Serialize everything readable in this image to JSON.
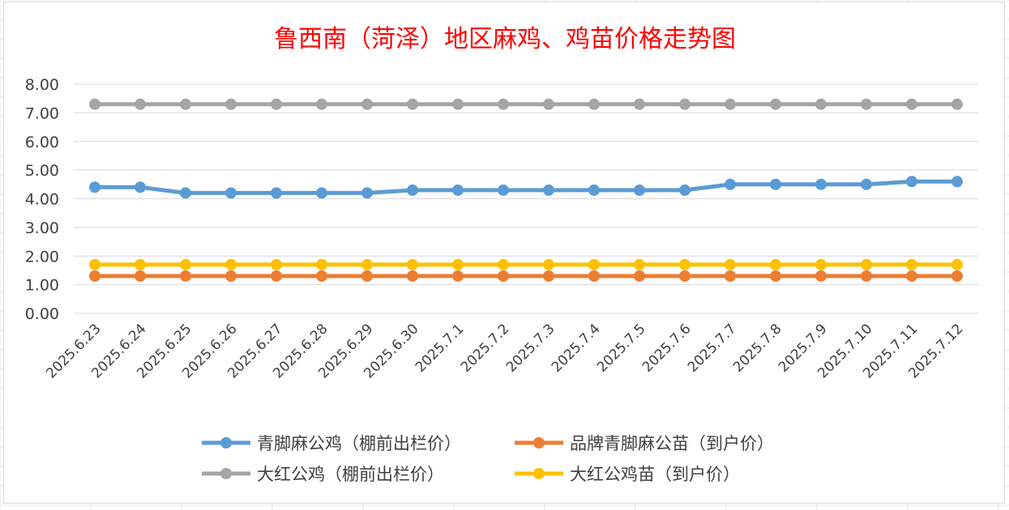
{
  "chart_data": {
    "type": "line",
    "title": "鲁西南（菏泽）地区麻鸡、鸡苗价格走势图",
    "xlabel": "",
    "ylabel": "",
    "ylim": [
      0,
      8
    ],
    "yticks": [
      "0.00",
      "1.00",
      "2.00",
      "3.00",
      "4.00",
      "5.00",
      "6.00",
      "7.00",
      "8.00"
    ],
    "grid": true,
    "legend_position": "bottom",
    "categories": [
      "2025.6.23",
      "2025.6.24",
      "2025.6.25",
      "2025.6.26",
      "2025.6.27",
      "2025.6.28",
      "2025.6.29",
      "2025.6.30",
      "2025.7.1",
      "2025.7.2",
      "2025.7.3",
      "2025.7.4",
      "2025.7.5",
      "2025.7.6",
      "2025.7.7",
      "2025.7.8",
      "2025.7.9",
      "2025.7.10",
      "2025.7.11",
      "2025.7.12"
    ],
    "series": [
      {
        "name": "青脚麻公鸡（棚前出栏价）",
        "color": "#5b9bd5",
        "values": [
          4.4,
          4.4,
          4.2,
          4.2,
          4.2,
          4.2,
          4.2,
          4.3,
          4.3,
          4.3,
          4.3,
          4.3,
          4.3,
          4.3,
          4.5,
          4.5,
          4.5,
          4.5,
          4.6,
          4.6
        ]
      },
      {
        "name": "品牌青脚麻公苗（到户价）",
        "color": "#ed7d31",
        "values": [
          1.3,
          1.3,
          1.3,
          1.3,
          1.3,
          1.3,
          1.3,
          1.3,
          1.3,
          1.3,
          1.3,
          1.3,
          1.3,
          1.3,
          1.3,
          1.3,
          1.3,
          1.3,
          1.3,
          1.3
        ]
      },
      {
        "name": "大红公鸡（棚前出栏价）",
        "color": "#a5a5a5",
        "values": [
          7.3,
          7.3,
          7.3,
          7.3,
          7.3,
          7.3,
          7.3,
          7.3,
          7.3,
          7.3,
          7.3,
          7.3,
          7.3,
          7.3,
          7.3,
          7.3,
          7.3,
          7.3,
          7.3,
          7.3
        ]
      },
      {
        "name": "大红公鸡苗（到户价）",
        "color": "#ffc000",
        "values": [
          1.7,
          1.7,
          1.7,
          1.7,
          1.7,
          1.7,
          1.7,
          1.7,
          1.7,
          1.7,
          1.7,
          1.7,
          1.7,
          1.7,
          1.7,
          1.7,
          1.7,
          1.7,
          1.7,
          1.7
        ]
      }
    ],
    "draw_order": [
      2,
      0,
      1,
      3
    ]
  }
}
